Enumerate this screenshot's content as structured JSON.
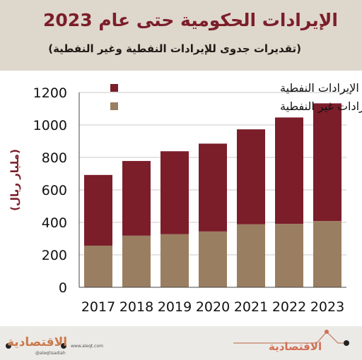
{
  "header": {
    "title": "الإيرادات الحكومية حتى عام  2023",
    "subtitle": "(تقديرات جدوى للإيرادات النفطية وغير النفطية)"
  },
  "footer": {
    "logo_text": "الاقتصادية",
    "handle_text": "@aleqtisadiah",
    "url_text": "www.aleqt.com"
  },
  "colors": {
    "oil": "#7b1e2a",
    "nonoil": "#9a7e61",
    "title": "#7b1e2a",
    "header_bg": "#ded7cb"
  },
  "chart_data": {
    "type": "bar",
    "stacked": true,
    "categories": [
      "2017",
      "2018",
      "2019",
      "2020",
      "2021",
      "2022",
      "2023"
    ],
    "series": [
      {
        "name": "تقديرات الإيرادات غير النفطية",
        "values": [
          256,
          318,
          327,
          344,
          388,
          391,
          408
        ],
        "color": "#9a7e61"
      },
      {
        "name": "تقديرات الإيرادات النفطية",
        "values": [
          436,
          460,
          511,
          541,
          585,
          655,
          725
        ],
        "color": "#7b1e2a"
      }
    ],
    "totals": [
      692,
      778,
      838,
      885,
      973,
      1046,
      1133
    ],
    "ylabel": "(مليار ريال)",
    "ylim": [
      0,
      1200
    ],
    "yticks": [
      0,
      200,
      400,
      600,
      800,
      1000,
      1200
    ],
    "grid": true,
    "legend": [
      {
        "label": "تقديرات الإيرادات النفطية",
        "color": "#7b1e2a"
      },
      {
        "label": "تقديرات الإيرادات غير النفطية",
        "color": "#9a7e61"
      }
    ],
    "legend_position": "top-left"
  }
}
